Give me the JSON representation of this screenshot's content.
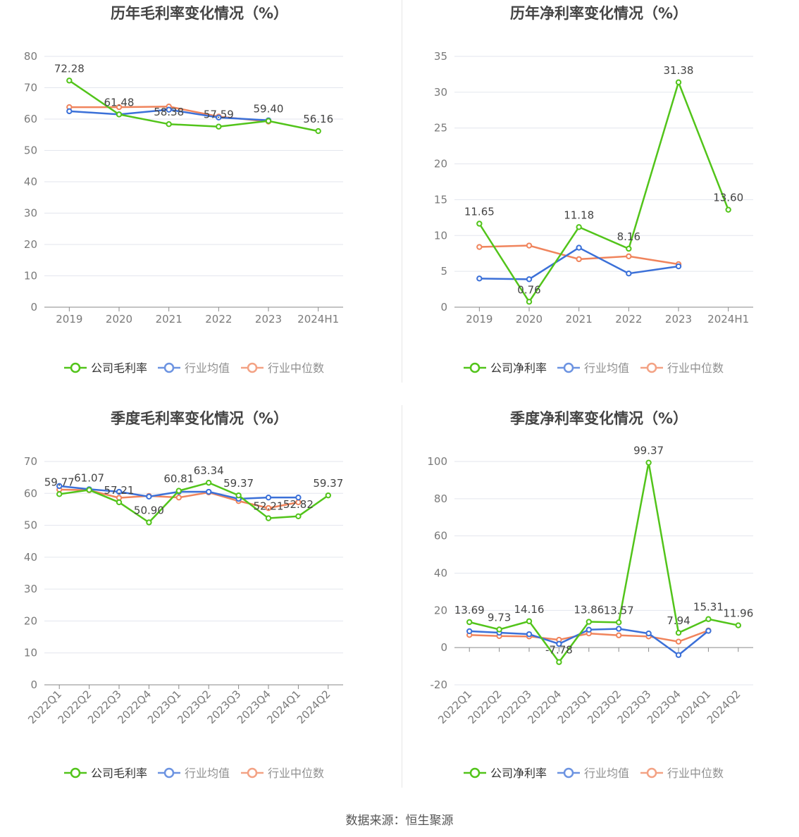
{
  "colors": {
    "company": "#52c41a",
    "avg": "#3b70d8",
    "median": "#f0845c"
  },
  "footer": "数据来源：恒生聚源",
  "chart_data": [
    {
      "type": "line",
      "title": "历年毛利率变化情况（%）",
      "categories": [
        "2019",
        "2020",
        "2021",
        "2022",
        "2023",
        "2024H1"
      ],
      "ylim": [
        0,
        80
      ],
      "yticks": [
        0,
        10,
        20,
        30,
        40,
        50,
        60,
        70,
        80
      ],
      "rotate_x": false,
      "series": [
        {
          "name": "公司毛利率",
          "key": "company",
          "values": [
            72.28,
            61.48,
            58.38,
            57.59,
            59.4,
            56.16
          ],
          "labels": [
            "72.28",
            "61.48",
            "58.38",
            "57.59",
            "59.40",
            "56.16"
          ]
        },
        {
          "name": "行业均值",
          "key": "avg",
          "values": [
            62.5,
            61.5,
            63.0,
            60.5,
            59.6,
            null
          ]
        },
        {
          "name": "行业中位数",
          "key": "median",
          "values": [
            63.8,
            63.8,
            64.0,
            60.8,
            59.2,
            null
          ]
        }
      ],
      "legend": "bottom"
    },
    {
      "type": "line",
      "title": "历年净利率变化情况（%）",
      "categories": [
        "2019",
        "2020",
        "2021",
        "2022",
        "2023",
        "2024H1"
      ],
      "ylim": [
        0,
        35
      ],
      "yticks": [
        0,
        5,
        10,
        15,
        20,
        25,
        30,
        35
      ],
      "rotate_x": false,
      "series": [
        {
          "name": "公司净利率",
          "key": "company",
          "values": [
            11.65,
            0.76,
            11.18,
            8.16,
            31.38,
            13.6
          ],
          "labels": [
            "11.65",
            "0.76",
            "11.18",
            "8.16",
            "31.38",
            "13.60"
          ]
        },
        {
          "name": "行业均值",
          "key": "avg",
          "values": [
            4.0,
            3.9,
            8.3,
            4.7,
            5.7,
            null
          ]
        },
        {
          "name": "行业中位数",
          "key": "median",
          "values": [
            8.4,
            8.6,
            6.7,
            7.1,
            6.0,
            null
          ]
        }
      ],
      "legend": "bottom"
    },
    {
      "type": "line",
      "title": "季度毛利率变化情况（%）",
      "categories": [
        "2022Q1",
        "2022Q2",
        "2022Q3",
        "2022Q4",
        "2023Q1",
        "2023Q2",
        "2023Q3",
        "2023Q4",
        "2024Q1",
        "2024Q2"
      ],
      "ylim": [
        0,
        70
      ],
      "yticks": [
        0,
        10,
        20,
        30,
        40,
        50,
        60,
        70
      ],
      "rotate_x": true,
      "series": [
        {
          "name": "公司毛利率",
          "key": "company",
          "values": [
            59.77,
            61.07,
            57.21,
            50.9,
            60.81,
            63.34,
            59.37,
            52.21,
            52.82,
            59.37
          ],
          "labels": [
            "59.77",
            "61.07",
            "57.21",
            "50.90",
            "60.81",
            "63.34",
            "59.37",
            "52.21",
            "52.82",
            "59.37"
          ]
        },
        {
          "name": "行业均值",
          "key": "avg",
          "values": [
            62.3,
            61.3,
            60.5,
            59.0,
            60.5,
            60.5,
            58.3,
            58.7,
            58.7,
            null
          ]
        },
        {
          "name": "行业中位数",
          "key": "median",
          "values": [
            61.2,
            61.0,
            58.6,
            59.2,
            58.7,
            60.3,
            57.6,
            55.4,
            57.2,
            null
          ]
        }
      ],
      "legend": "bottom"
    },
    {
      "type": "line",
      "title": "季度净利率变化情况（%）",
      "categories": [
        "2022Q1",
        "2022Q2",
        "2022Q3",
        "2022Q4",
        "2023Q1",
        "2023Q2",
        "2023Q3",
        "2023Q4",
        "2024Q1",
        "2024Q2"
      ],
      "ylim": [
        -20,
        100
      ],
      "yticks": [
        -20,
        0,
        20,
        40,
        60,
        80,
        100
      ],
      "rotate_x": true,
      "series": [
        {
          "name": "公司净利率",
          "key": "company",
          "values": [
            13.69,
            9.73,
            14.16,
            -7.78,
            13.86,
            13.57,
            99.37,
            7.94,
            15.31,
            11.96
          ],
          "labels": [
            "13.69",
            "9.73",
            "14.16",
            "-7.78",
            "13.86",
            "13.57",
            "99.37",
            "7.94",
            "15.31",
            "11.96"
          ]
        },
        {
          "name": "行业均值",
          "key": "avg",
          "values": [
            8.8,
            8.0,
            7.2,
            2.0,
            9.6,
            10.1,
            7.6,
            -4.0,
            9.0,
            null
          ]
        },
        {
          "name": "行业中位数",
          "key": "median",
          "values": [
            6.8,
            6.2,
            6.0,
            4.2,
            7.6,
            6.6,
            6.0,
            3.2,
            9.2,
            null
          ]
        }
      ],
      "legend": "bottom"
    }
  ]
}
